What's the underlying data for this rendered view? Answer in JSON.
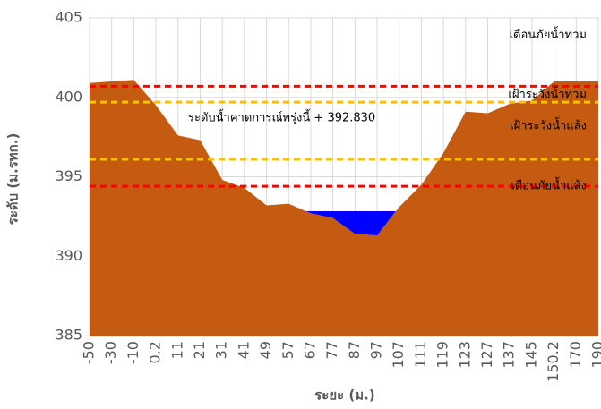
{
  "chart_data": {
    "type": "area",
    "y_label": "ระดับ (ม.รทก.)",
    "x_label": "ระยะ (ม.)",
    "categories": [
      "-50",
      "-30",
      "-10",
      "0.2",
      "11",
      "21",
      "31",
      "41",
      "49",
      "57",
      "67",
      "77",
      "87",
      "97",
      "107",
      "111",
      "119",
      "123",
      "127",
      "137",
      "145",
      "150.2",
      "170",
      "190"
    ],
    "values": [
      400.9,
      401,
      401.1,
      399.5,
      397.6,
      397.3,
      394.8,
      394.3,
      393.2,
      393.3,
      392.7,
      392.4,
      391.4,
      391.3,
      393.1,
      394.5,
      396.5,
      399.1,
      399.0,
      399.6,
      399.8,
      401,
      401,
      401
    ],
    "color": "#c55a11",
    "water_level": 392.83,
    "water_color": "#0000ff",
    "annotation": "ระดับน้ำคาดการณ์พรุ่งนี้ + 392.830",
    "thresholds": [
      {
        "name": "เตือนภัยน้ำท่วม",
        "value": 400.7,
        "color": "#ff0000"
      },
      {
        "name": "เฝ้าระวังน้ำท่วม",
        "value": 399.7,
        "color": "#ffc000"
      },
      {
        "name": "เฝ้าระวังน้ำแล้ง",
        "value": 396.1,
        "color": "#ffc000"
      },
      {
        "name": "เตือนภัยน้ำแล้ง",
        "value": 394.4,
        "color": "#ff0000"
      }
    ],
    "ylim": [
      385,
      405
    ],
    "yticks": [
      385,
      390,
      395,
      400,
      405
    ],
    "grid": true
  }
}
